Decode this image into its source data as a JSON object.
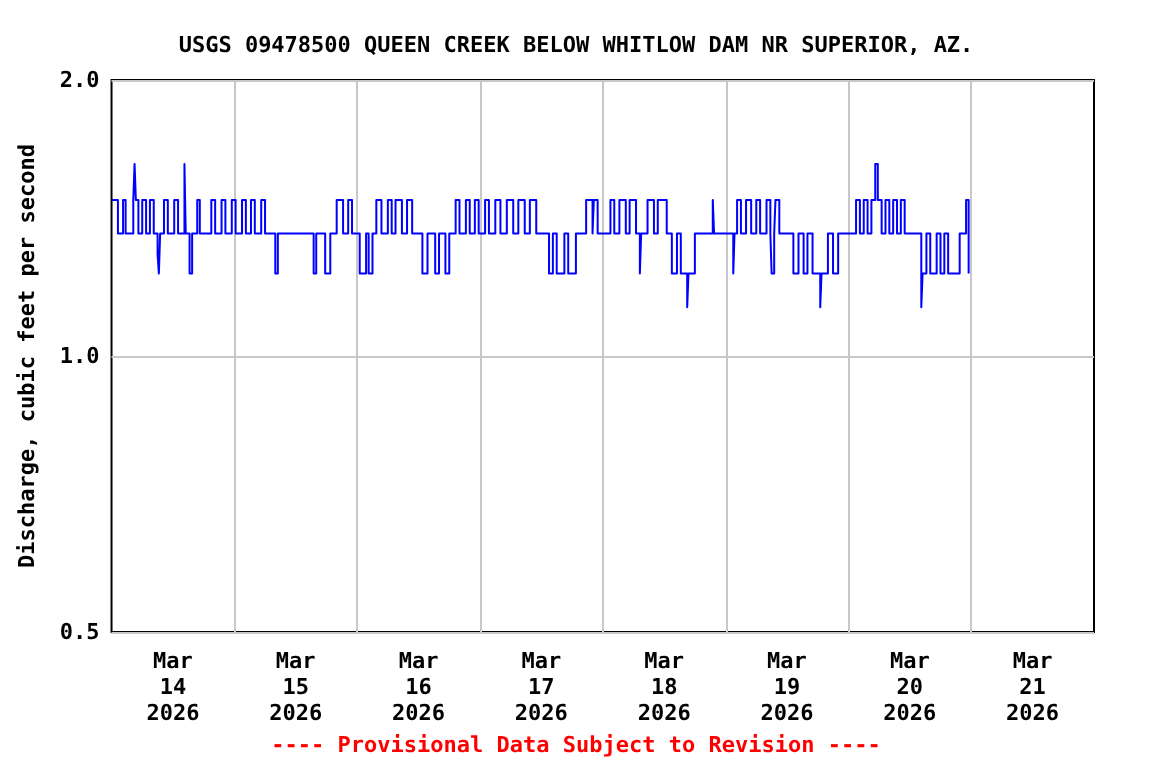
{
  "chart_data": {
    "type": "step",
    "title": "USGS 09478500 QUEEN CREEK BELOW WHITLOW DAM NR SUPERIOR, AZ.",
    "ylabel": "Discharge, cubic feet per second",
    "annotations": [
      "---- Provisional Data Subject to Revision ----"
    ],
    "log": "y",
    "grid": true,
    "marker": "none",
    "line_style": "solid",
    "xlim": [
      "2026-03-14T00:00",
      "2026-03-22T00:00"
    ],
    "xticks": [
      {
        "value": "2026-03-14T12:00",
        "label": "Mar\n14\n2026"
      },
      {
        "value": "2026-03-15T12:00",
        "label": "Mar\n15\n2026"
      },
      {
        "value": "2026-03-16T12:00",
        "label": "Mar\n16\n2026"
      },
      {
        "value": "2026-03-17T12:00",
        "label": "Mar\n17\n2026"
      },
      {
        "value": "2026-03-18T12:00",
        "label": "Mar\n18\n2026"
      },
      {
        "value": "2026-03-19T12:00",
        "label": "Mar\n19\n2026"
      },
      {
        "value": "2026-03-20T12:00",
        "label": "Mar\n20\n2026"
      },
      {
        "value": "2026-03-21T12:00",
        "label": "Mar\n21\n2026"
      },
      {
        "value": "2026-03-15T00:00",
        "label": null
      },
      {
        "value": "2026-03-16T00:00",
        "label": null
      },
      {
        "value": "2026-03-17T00:00",
        "label": null
      },
      {
        "value": "2026-03-18T00:00",
        "label": null
      },
      {
        "value": "2026-03-19T00:00",
        "label": null
      },
      {
        "value": "2026-03-20T00:00",
        "label": null
      },
      {
        "value": "2026-03-21T00:00",
        "label": null
      }
    ],
    "ylim": [
      0.5,
      2
    ],
    "yticks": [
      0.5,
      {
        "value": 1,
        "label": "1.0"
      },
      {
        "value": 2,
        "label": "2.0"
      }
    ],
    "series": [
      {
        "color": "#0000ff",
        "x": [
          "2026-03-14T00:00",
          "2026-03-14T01:15",
          "2026-03-14T02:15",
          "2026-03-14T02:45",
          "2026-03-14T04:15",
          "2026-03-14T04:30",
          "2026-03-14T04:45",
          "2026-03-14T05:15",
          "2026-03-14T06:00",
          "2026-03-14T06:45",
          "2026-03-14T07:30",
          "2026-03-14T08:15",
          "2026-03-14T09:00",
          "2026-03-14T09:15",
          "2026-03-14T09:30",
          "2026-03-14T10:15",
          "2026-03-14T11:00",
          "2026-03-14T12:15",
          "2026-03-14T13:00",
          "2026-03-14T14:15",
          "2026-03-14T14:30",
          "2026-03-14T15:15",
          "2026-03-14T15:45",
          "2026-03-14T16:45",
          "2026-03-14T17:15",
          "2026-03-14T19:30",
          "2026-03-14T20:15",
          "2026-03-14T21:30",
          "2026-03-14T22:15",
          "2026-03-14T23:30",
          "2026-03-15T00:15",
          "2026-03-15T01:30",
          "2026-03-15T02:15",
          "2026-03-15T03:15",
          "2026-03-15T04:00",
          "2026-03-15T05:15",
          "2026-03-15T06:00",
          "2026-03-15T08:00",
          "2026-03-15T08:30",
          "2026-03-15T15:30",
          "2026-03-15T16:00",
          "2026-03-15T17:45",
          "2026-03-15T18:45",
          "2026-03-15T20:00",
          "2026-03-15T21:15",
          "2026-03-15T22:15",
          "2026-03-15T23:00",
          "2026-03-16T00:30",
          "2026-03-16T01:45",
          "2026-03-16T02:15",
          "2026-03-16T03:00",
          "2026-03-16T03:45",
          "2026-03-16T04:45",
          "2026-03-16T06:00",
          "2026-03-16T06:45",
          "2026-03-16T07:30",
          "2026-03-16T08:45",
          "2026-03-16T09:45",
          "2026-03-16T10:45",
          "2026-03-16T12:45",
          "2026-03-16T13:45",
          "2026-03-16T15:15",
          "2026-03-16T16:00",
          "2026-03-16T17:15",
          "2026-03-16T18:00",
          "2026-03-16T19:15",
          "2026-03-16T20:00",
          "2026-03-16T21:15",
          "2026-03-16T22:00",
          "2026-03-16T23:00",
          "2026-03-16T23:45",
          "2026-03-17T01:00",
          "2026-03-17T01:45",
          "2026-03-17T03:00",
          "2026-03-17T04:00",
          "2026-03-17T05:15",
          "2026-03-17T06:30",
          "2026-03-17T07:30",
          "2026-03-17T08:45",
          "2026-03-17T09:45",
          "2026-03-17T11:00",
          "2026-03-17T13:30",
          "2026-03-17T14:15",
          "2026-03-17T15:00",
          "2026-03-17T16:30",
          "2026-03-17T17:15",
          "2026-03-17T18:45",
          "2026-03-17T20:45",
          "2026-03-17T22:00",
          "2026-03-17T22:15",
          "2026-03-17T23:00",
          "2026-03-18T01:30",
          "2026-03-18T02:15",
          "2026-03-18T03:15",
          "2026-03-18T04:30",
          "2026-03-18T05:15",
          "2026-03-18T06:30",
          "2026-03-18T07:15",
          "2026-03-18T07:30",
          "2026-03-18T08:45",
          "2026-03-18T10:00",
          "2026-03-18T10:45",
          "2026-03-18T12:30",
          "2026-03-18T13:30",
          "2026-03-18T14:30",
          "2026-03-18T15:15",
          "2026-03-18T16:30",
          "2026-03-18T16:45",
          "2026-03-18T18:00",
          "2026-03-18T21:30",
          "2026-03-18T21:45",
          "2026-03-19T01:30",
          "2026-03-19T01:45",
          "2026-03-19T02:15",
          "2026-03-19T03:00",
          "2026-03-19T04:00",
          "2026-03-19T05:00",
          "2026-03-19T06:00",
          "2026-03-19T06:45",
          "2026-03-19T08:00",
          "2026-03-19T08:45",
          "2026-03-19T09:00",
          "2026-03-19T09:30",
          "2026-03-19T09:45",
          "2026-03-19T10:30",
          "2026-03-19T13:15",
          "2026-03-19T14:15",
          "2026-03-19T15:15",
          "2026-03-19T16:00",
          "2026-03-19T17:00",
          "2026-03-19T18:30",
          "2026-03-19T18:45",
          "2026-03-19T20:00",
          "2026-03-19T21:00",
          "2026-03-19T22:00",
          "2026-03-20T01:30",
          "2026-03-20T02:15",
          "2026-03-20T03:00",
          "2026-03-20T03:45",
          "2026-03-20T04:30",
          "2026-03-20T05:15",
          "2026-03-20T05:45",
          "2026-03-20T06:30",
          "2026-03-20T07:15",
          "2026-03-20T08:00",
          "2026-03-20T08:45",
          "2026-03-20T09:30",
          "2026-03-20T10:15",
          "2026-03-20T11:00",
          "2026-03-20T14:15",
          "2026-03-20T14:30",
          "2026-03-20T15:15",
          "2026-03-20T16:00",
          "2026-03-20T17:15",
          "2026-03-20T18:00",
          "2026-03-20T18:45",
          "2026-03-20T19:30",
          "2026-03-20T21:45",
          "2026-03-20T23:00",
          "2026-03-20T23:30"
        ],
        "values": [
          1.48,
          1.36,
          1.48,
          1.36,
          1.48,
          1.62,
          1.48,
          1.36,
          1.48,
          1.36,
          1.48,
          1.36,
          1.29,
          1.23,
          1.36,
          1.48,
          1.36,
          1.48,
          1.36,
          1.62,
          1.36,
          1.23,
          1.36,
          1.48,
          1.36,
          1.48,
          1.36,
          1.48,
          1.36,
          1.48,
          1.36,
          1.48,
          1.36,
          1.48,
          1.36,
          1.48,
          1.36,
          1.23,
          1.36,
          1.23,
          1.36,
          1.23,
          1.36,
          1.48,
          1.36,
          1.48,
          1.36,
          1.23,
          1.36,
          1.23,
          1.36,
          1.48,
          1.36,
          1.48,
          1.36,
          1.48,
          1.36,
          1.48,
          1.36,
          1.23,
          1.36,
          1.23,
          1.36,
          1.23,
          1.36,
          1.48,
          1.36,
          1.48,
          1.36,
          1.48,
          1.36,
          1.48,
          1.36,
          1.48,
          1.36,
          1.48,
          1.36,
          1.48,
          1.36,
          1.48,
          1.36,
          1.23,
          1.36,
          1.23,
          1.36,
          1.23,
          1.36,
          1.48,
          1.36,
          1.48,
          1.36,
          1.48,
          1.36,
          1.48,
          1.36,
          1.48,
          1.36,
          1.23,
          1.36,
          1.48,
          1.36,
          1.48,
          1.36,
          1.23,
          1.36,
          1.23,
          1.13,
          1.23,
          1.36,
          1.48,
          1.36,
          1.23,
          1.36,
          1.48,
          1.36,
          1.48,
          1.36,
          1.48,
          1.36,
          1.48,
          1.36,
          1.23,
          1.36,
          1.48,
          1.36,
          1.23,
          1.36,
          1.23,
          1.36,
          1.23,
          1.13,
          1.23,
          1.36,
          1.23,
          1.36,
          1.48,
          1.36,
          1.48,
          1.36,
          1.48,
          1.62,
          1.48,
          1.36,
          1.48,
          1.36,
          1.48,
          1.36,
          1.48,
          1.36,
          1.13,
          1.23,
          1.36,
          1.23,
          1.36,
          1.23,
          1.36,
          1.23,
          1.36,
          1.48,
          1.23
        ]
      }
    ]
  }
}
